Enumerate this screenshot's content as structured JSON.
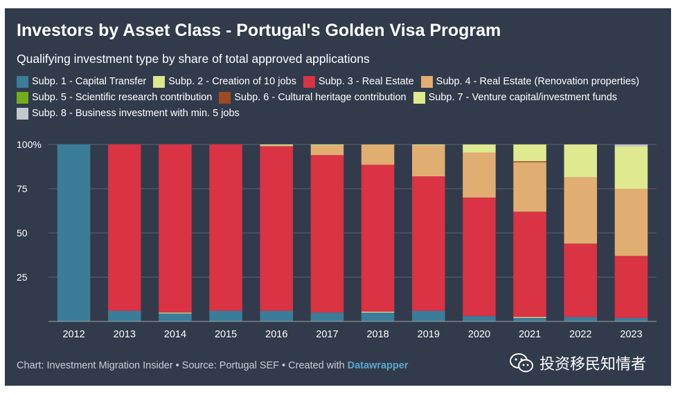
{
  "header": {
    "title": "Investors by Asset Class  - Portugal's Golden Visa Program",
    "subtitle": "Qualifying investment type by share of total approved applications"
  },
  "legend": [
    {
      "label": "Subp. 1 - Capital Transfer",
      "color": "#3b7d99"
    },
    {
      "label": "Subp. 2 - Creation of 10 jobs",
      "color": "#dce78e"
    },
    {
      "label": "Subp. 3 - Real Estate",
      "color": "#d93344"
    },
    {
      "label": "Subp. 4 - Real Estate (Renovation properties)",
      "color": "#e1ae72"
    },
    {
      "label": "Subp. 5 - Scientific research contribution",
      "color": "#73ad1b"
    },
    {
      "label": "Subp. 6 - Cultural heritage contribution",
      "color": "#9c4a24"
    },
    {
      "label": "Subp. 7 - Venture capital/investment funds",
      "color": "#dfe98f"
    },
    {
      "label": "Subp. 8 - Business investment with min. 5 jobs",
      "color": "#c3c9cf"
    }
  ],
  "chart_data": {
    "type": "bar",
    "stacked": true,
    "categories": [
      "2012",
      "2013",
      "2014",
      "2015",
      "2016",
      "2017",
      "2018",
      "2019",
      "2020",
      "2021",
      "2022",
      "2023"
    ],
    "y_ticks": [
      "100%",
      "75",
      "50",
      "25"
    ],
    "ylim": [
      0,
      100
    ],
    "grid": true,
    "series": [
      {
        "name": "Subp. 1 - Capital Transfer",
        "color": "#3b7d99",
        "values": [
          100,
          6,
          4.5,
          6,
          6,
          5,
          5,
          6,
          3,
          2,
          2.5,
          2
        ]
      },
      {
        "name": "Subp. 2 - Creation of 10 jobs",
        "color": "#dce78e",
        "values": [
          0,
          0,
          0.5,
          0,
          0,
          0,
          0.5,
          0,
          0,
          0.5,
          0,
          0
        ]
      },
      {
        "name": "Subp. 3 - Real Estate",
        "color": "#d93344",
        "values": [
          0,
          94,
          95,
          94,
          93,
          89,
          83,
          76,
          67,
          59.5,
          41.5,
          35
        ]
      },
      {
        "name": "Subp. 4 - Real Estate (Renovation properties)",
        "color": "#e1ae72",
        "values": [
          0,
          0,
          0,
          0,
          0.5,
          5.5,
          11.5,
          17.5,
          25.5,
          28,
          37.5,
          38
        ]
      },
      {
        "name": "Subp. 5 - Scientific research contribution",
        "color": "#73ad1b",
        "values": [
          0,
          0,
          0,
          0,
          0,
          0,
          0,
          0,
          0,
          0,
          0,
          0
        ]
      },
      {
        "name": "Subp. 6 - Cultural heritage contribution",
        "color": "#9c4a24",
        "values": [
          0,
          0,
          0,
          0,
          0,
          0,
          0,
          0,
          0,
          0.5,
          0,
          0
        ]
      },
      {
        "name": "Subp. 7 - Venture capital/investment funds",
        "color": "#dfe98f",
        "values": [
          0,
          0,
          0,
          0,
          0.5,
          0.5,
          0,
          0.5,
          4.5,
          9.5,
          18.5,
          24
        ]
      },
      {
        "name": "Subp. 8 - Business investment with min. 5 jobs",
        "color": "#c3c9cf",
        "values": [
          0,
          0,
          0,
          0,
          0,
          0,
          0,
          0,
          0,
          0,
          0,
          1
        ]
      }
    ]
  },
  "footer": {
    "source_text": "Chart: Investment Migration Insider • Source: Portugal SEF • Created with ",
    "tool_link": "Datawrapper"
  },
  "watermark": {
    "text": "投资移民知情者",
    "icon": "wechat-icon"
  }
}
